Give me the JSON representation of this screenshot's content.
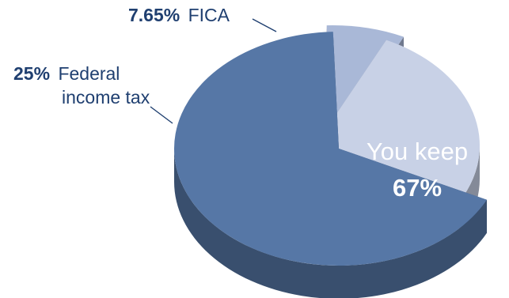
{
  "chart_data": {
    "type": "pie",
    "style": "3d-exploded",
    "slices": [
      {
        "pct_label": "7.65%",
        "label_lines": [
          "FICA"
        ],
        "value": 7.65,
        "color": "#a9b8d7",
        "exploded": true
      },
      {
        "pct_label": "25%",
        "label_lines": [
          "Federal",
          "income tax"
        ],
        "value": 25,
        "color": "#c8d1e6",
        "exploded": true
      },
      {
        "pct_label": "67%",
        "label_lines": [
          "You keep"
        ],
        "value": 67,
        "color": "#5677a6",
        "exploded": false
      }
    ]
  }
}
